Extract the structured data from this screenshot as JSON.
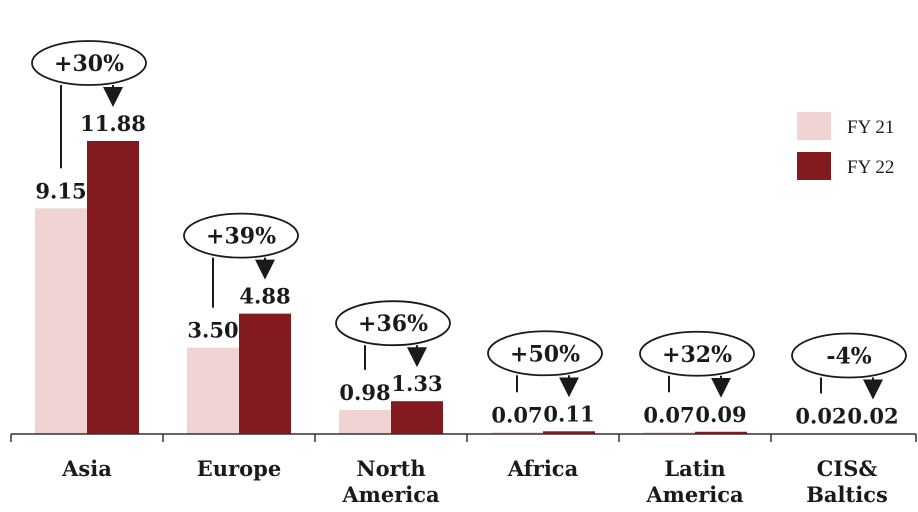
{
  "chart_data": {
    "type": "bar",
    "categories": [
      [
        "Asia"
      ],
      [
        "Europe"
      ],
      [
        "North",
        "America"
      ],
      [
        "Africa"
      ],
      [
        "Latin",
        "America"
      ],
      [
        "CIS&",
        "Baltics"
      ]
    ],
    "series": [
      {
        "name": "FY 21",
        "color": "#f0d3d3",
        "values": [
          9.15,
          3.5,
          0.98,
          0.07,
          0.07,
          0.02
        ],
        "labels": [
          "9.15",
          "3.50",
          "0.98",
          "0.07",
          "0.07",
          "0.02"
        ]
      },
      {
        "name": "FY 22",
        "color": "#831a20",
        "values": [
          11.88,
          4.88,
          1.33,
          0.11,
          0.09,
          0.02
        ],
        "labels": [
          "11.88",
          "4.88",
          "1.33",
          "0.11",
          "0.09",
          "0.02"
        ]
      }
    ],
    "changes": [
      "+30%",
      "+39%",
      "+36%",
      "+50%",
      "+32%",
      "-4%"
    ],
    "ylim": [
      0,
      11.88
    ],
    "legend": "right",
    "grid": false
  }
}
